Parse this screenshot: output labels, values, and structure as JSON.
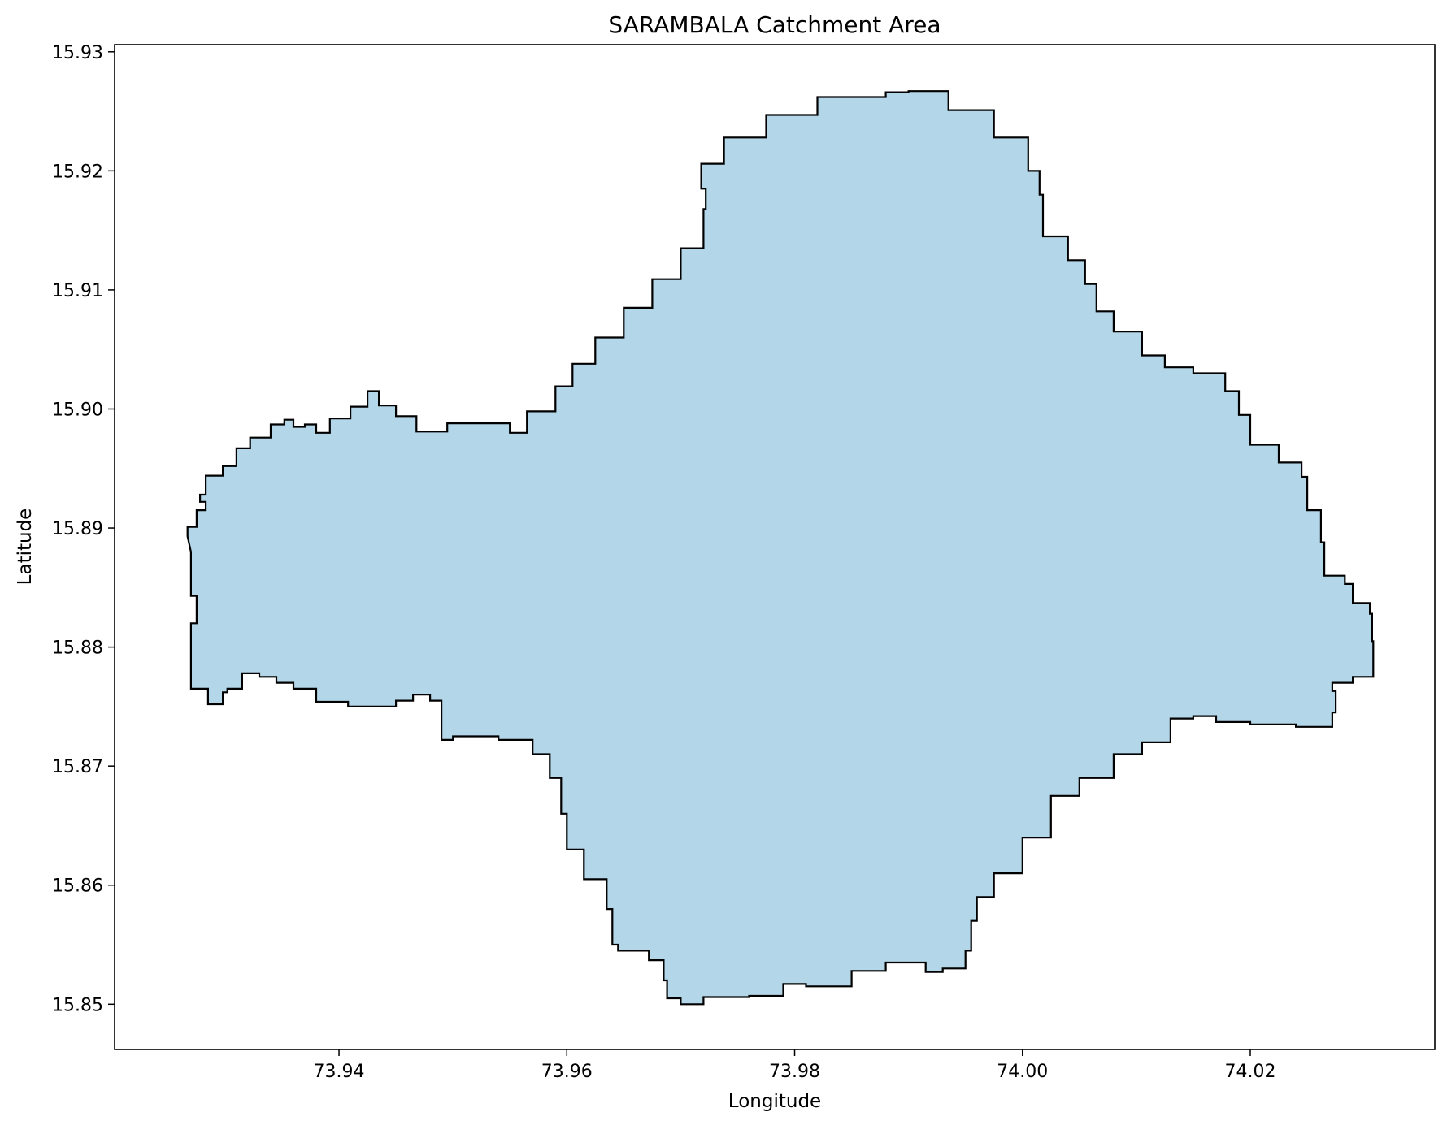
{
  "chart_data": {
    "type": "area",
    "title": "SARAMBALA Catchment Area",
    "xlabel": "Longitude",
    "ylabel": "Latitude",
    "xlim": [
      73.9203,
      74.0362
    ],
    "ylim": [
      15.8462,
      15.9306
    ],
    "x_ticks": [
      73.94,
      73.96,
      73.98,
      74.0,
      74.02
    ],
    "x_tick_labels": [
      "73.94",
      "73.96",
      "73.98",
      "74.00",
      "74.02"
    ],
    "y_ticks": [
      15.85,
      15.86,
      15.87,
      15.88,
      15.89,
      15.9,
      15.91,
      15.92,
      15.93
    ],
    "y_tick_labels": [
      "15.85",
      "15.86",
      "15.87",
      "15.88",
      "15.89",
      "15.90",
      "15.91",
      "15.92",
      "15.93"
    ],
    "grid": false,
    "fill_color": "#b3d7e8",
    "edge_color": "#000000",
    "polygon": [
      [
        73.9267,
        15.8893
      ],
      [
        73.9267,
        15.8901
      ],
      [
        73.9275,
        15.8915
      ],
      [
        73.9283,
        15.8922
      ],
      [
        73.9278,
        15.8928
      ],
      [
        73.9283,
        15.8944
      ],
      [
        73.9298,
        15.8952
      ],
      [
        73.931,
        15.8967
      ],
      [
        73.9322,
        15.8976
      ],
      [
        73.934,
        15.8987
      ],
      [
        73.9352,
        15.8991
      ],
      [
        73.936,
        15.8985
      ],
      [
        73.937,
        15.8987
      ],
      [
        73.938,
        15.898
      ],
      [
        73.9392,
        15.8992
      ],
      [
        73.941,
        15.9002
      ],
      [
        73.9425,
        15.9015
      ],
      [
        73.9435,
        15.9003
      ],
      [
        73.945,
        15.8994
      ],
      [
        73.9468,
        15.8981
      ],
      [
        73.9495,
        15.8988
      ],
      [
        73.953,
        15.8988
      ],
      [
        73.955,
        15.898
      ],
      [
        73.9565,
        15.8998
      ],
      [
        73.959,
        15.9019
      ],
      [
        73.9605,
        15.9038
      ],
      [
        73.9625,
        15.906
      ],
      [
        73.965,
        15.9085
      ],
      [
        73.9675,
        15.9109
      ],
      [
        73.97,
        15.9135
      ],
      [
        73.972,
        15.9168
      ],
      [
        73.9722,
        15.9185
      ],
      [
        73.9718,
        15.9206
      ],
      [
        73.9738,
        15.9228
      ],
      [
        73.9775,
        15.9247
      ],
      [
        73.982,
        15.9262
      ],
      [
        73.988,
        15.9266
      ],
      [
        73.99,
        15.9267
      ],
      [
        73.9935,
        15.9251
      ],
      [
        73.9975,
        15.9228
      ],
      [
        74.0005,
        15.92
      ],
      [
        74.0015,
        15.918
      ],
      [
        74.0018,
        15.9145
      ],
      [
        74.004,
        15.9125
      ],
      [
        74.0055,
        15.9105
      ],
      [
        74.0065,
        15.9082
      ],
      [
        74.008,
        15.9065
      ],
      [
        74.0105,
        15.9045
      ],
      [
        74.0125,
        15.9035
      ],
      [
        74.015,
        15.903
      ],
      [
        74.0178,
        15.9015
      ],
      [
        74.019,
        15.8995
      ],
      [
        74.02,
        15.897
      ],
      [
        74.0225,
        15.8955
      ],
      [
        74.0245,
        15.8943
      ],
      [
        74.025,
        15.8915
      ],
      [
        74.0262,
        15.8888
      ],
      [
        74.0265,
        15.886
      ],
      [
        74.0283,
        15.8853
      ],
      [
        74.029,
        15.8837
      ],
      [
        74.0305,
        15.8828
      ],
      [
        74.0307,
        15.8805
      ],
      [
        74.0308,
        15.8775
      ],
      [
        74.029,
        15.877
      ],
      [
        74.0272,
        15.8763
      ],
      [
        74.0275,
        15.8745
      ],
      [
        74.0272,
        15.8733
      ],
      [
        74.024,
        15.8735
      ],
      [
        74.02,
        15.8737
      ],
      [
        74.017,
        15.8742
      ],
      [
        74.015,
        15.874
      ],
      [
        74.013,
        15.872
      ],
      [
        74.0105,
        15.871
      ],
      [
        74.008,
        15.869
      ],
      [
        74.005,
        15.8675
      ],
      [
        74.0025,
        15.864
      ],
      [
        74.0,
        15.861
      ],
      [
        73.9975,
        15.859
      ],
      [
        73.996,
        15.857
      ],
      [
        73.9955,
        15.8545
      ],
      [
        73.995,
        15.853
      ],
      [
        73.993,
        15.8527
      ],
      [
        73.9915,
        15.8535
      ],
      [
        73.988,
        15.8528
      ],
      [
        73.985,
        15.8515
      ],
      [
        73.981,
        15.8517
      ],
      [
        73.979,
        15.8507
      ],
      [
        73.976,
        15.8506
      ],
      [
        73.972,
        15.85
      ],
      [
        73.97,
        15.8505
      ],
      [
        73.9688,
        15.852
      ],
      [
        73.9685,
        15.8537
      ],
      [
        73.9672,
        15.8545
      ],
      [
        73.9645,
        15.855
      ],
      [
        73.964,
        15.858
      ],
      [
        73.9635,
        15.8605
      ],
      [
        73.9615,
        15.863
      ],
      [
        73.96,
        15.866
      ],
      [
        73.9595,
        15.869
      ],
      [
        73.9585,
        15.871
      ],
      [
        73.957,
        15.8722
      ],
      [
        73.954,
        15.8725
      ],
      [
        73.952,
        15.8725
      ],
      [
        73.95,
        15.8722
      ],
      [
        73.949,
        15.8732
      ],
      [
        73.949,
        15.8755
      ],
      [
        73.948,
        15.876
      ],
      [
        73.9465,
        15.8755
      ],
      [
        73.945,
        15.875
      ],
      [
        73.942,
        15.875
      ],
      [
        73.9408,
        15.8754
      ],
      [
        73.938,
        15.8765
      ],
      [
        73.936,
        15.877
      ],
      [
        73.9345,
        15.8775
      ],
      [
        73.933,
        15.8778
      ],
      [
        73.9315,
        15.8765
      ],
      [
        73.9302,
        15.8762
      ],
      [
        73.9298,
        15.8752
      ],
      [
        73.9285,
        15.8765
      ],
      [
        73.927,
        15.8785
      ],
      [
        73.927,
        15.882
      ],
      [
        73.9275,
        15.8843
      ],
      [
        73.927,
        15.8855
      ],
      [
        73.927,
        15.888
      ]
    ]
  }
}
